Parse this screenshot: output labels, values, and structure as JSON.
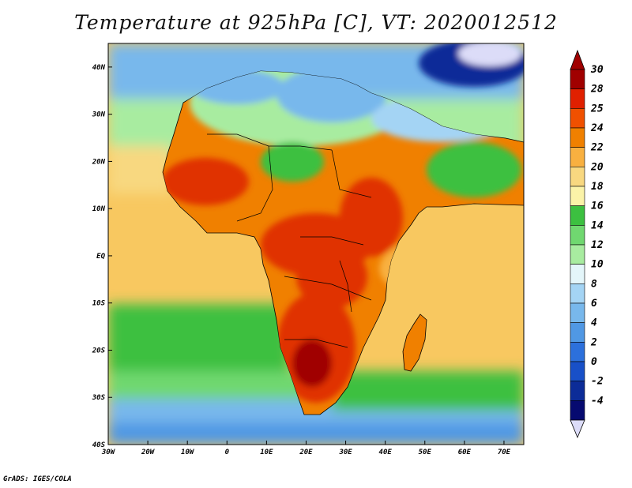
{
  "title": "Temperature at 925hPa [C], VT: 2020012512",
  "credit": "GrADS: IGES/COLA",
  "map": {
    "lon_range": [
      -30,
      75
    ],
    "lat_range": [
      -40,
      45
    ],
    "lon_ticks": [
      {
        "value": -30,
        "label": "30W"
      },
      {
        "value": -20,
        "label": "20W"
      },
      {
        "value": -10,
        "label": "10W"
      },
      {
        "value": 0,
        "label": "0"
      },
      {
        "value": 10,
        "label": "10E"
      },
      {
        "value": 20,
        "label": "20E"
      },
      {
        "value": 30,
        "label": "30E"
      },
      {
        "value": 40,
        "label": "40E"
      },
      {
        "value": 50,
        "label": "50E"
      },
      {
        "value": 60,
        "label": "60E"
      },
      {
        "value": 70,
        "label": "70E"
      }
    ],
    "lat_ticks": [
      {
        "value": 40,
        "label": "40N"
      },
      {
        "value": 30,
        "label": "30N"
      },
      {
        "value": 20,
        "label": "20N"
      },
      {
        "value": 10,
        "label": "10N"
      },
      {
        "value": 0,
        "label": "EQ"
      },
      {
        "value": -10,
        "label": "10S"
      },
      {
        "value": -20,
        "label": "20S"
      },
      {
        "value": -30,
        "label": "30S"
      },
      {
        "value": -40,
        "label": "40S"
      }
    ]
  },
  "colorbar": {
    "labels": [
      "30",
      "28",
      "25",
      "24",
      "22",
      "20",
      "18",
      "16",
      "14",
      "12",
      "10",
      "8",
      "6",
      "4",
      "2",
      "0",
      "-2",
      "-4"
    ],
    "colors": [
      "#a00000",
      "#e02000",
      "#f05000",
      "#f08000",
      "#f8b040",
      "#f8d880",
      "#fbf3a8",
      "#3cc040",
      "#70d870",
      "#a8eca0",
      "#e4f6fa",
      "#a4d4f4",
      "#78b8ec",
      "#5098e4",
      "#2c70dc",
      "#1850c8",
      "#0c2c98",
      "#060a70"
    ],
    "low_cap_color": "#dcdcf8"
  },
  "palette": {
    "ocean_warm": "#f8c860",
    "ocean_cool_green": "#3ec040",
    "ocean_cold_blue": "#5aa0e8",
    "land_hot": "#e03000",
    "land_warm": "#f08000",
    "desert_cool": "#78b8ec",
    "north_cold": "#1c50c8",
    "coast_line": "#000000"
  }
}
